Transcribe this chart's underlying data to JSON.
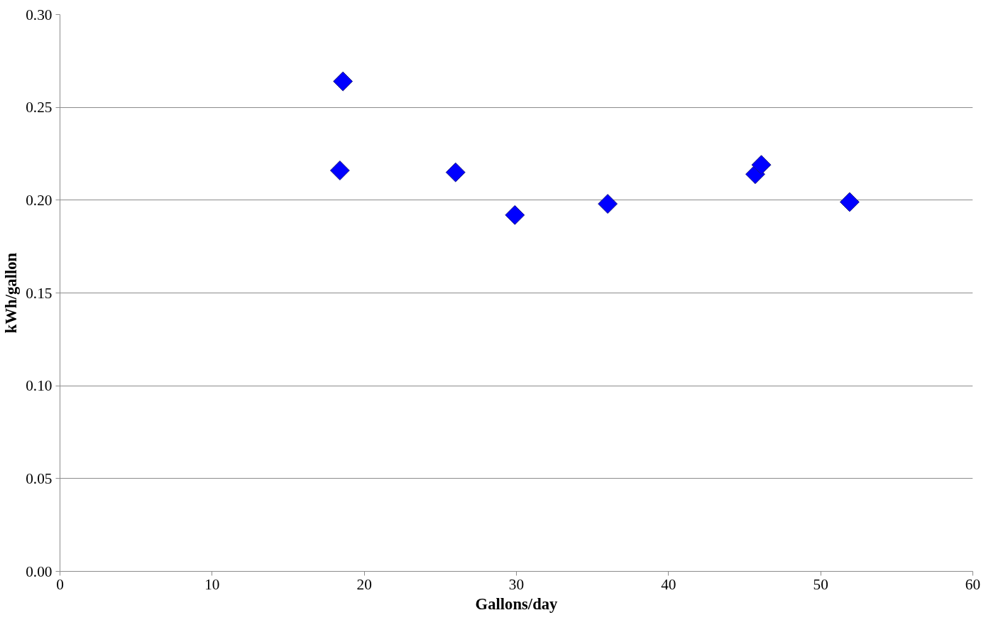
{
  "chart_data": {
    "type": "scatter",
    "xlabel": "Gallons/day",
    "ylabel": "kWh/gallon",
    "x": [
      18.6,
      18.4,
      26.0,
      29.9,
      36.0,
      45.7,
      46.1,
      51.9
    ],
    "series": [
      {
        "color": "#0000ff",
        "values": [
          0.264,
          0.216,
          0.215,
          0.192,
          0.198,
          0.214,
          0.219,
          0.199
        ]
      }
    ],
    "xlim": [
      0,
      60
    ],
    "xticks": [
      0,
      10,
      20,
      30,
      40,
      50,
      60
    ],
    "ylim": [
      0,
      0.3
    ],
    "yticks": [
      {
        "value": 0,
        "label": "0.00"
      },
      {
        "value": 0.05,
        "label": "0.05"
      },
      {
        "value": 0.1,
        "label": "0.10"
      },
      {
        "value": 0.15,
        "label": "0.15"
      },
      {
        "value": 0.2,
        "label": "0.20"
      },
      {
        "value": 0.25,
        "label": "0.25"
      },
      {
        "value": 0.3,
        "label": "0.30"
      }
    ],
    "grid": "y",
    "marker": "diamond"
  }
}
